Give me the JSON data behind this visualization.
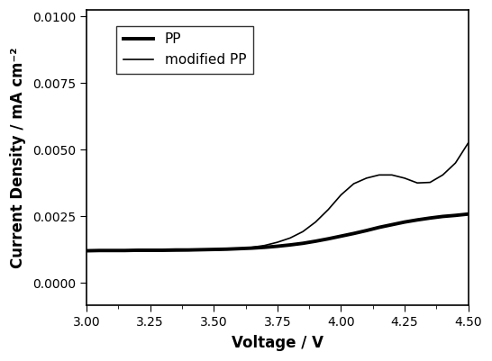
{
  "title": "",
  "xlabel": "Voltage / V",
  "ylabel": "Current Density / mA cm⁻²",
  "xlim": [
    3.0,
    4.5
  ],
  "ylim": [
    -0.00085,
    0.01025
  ],
  "yticks": [
    0.0,
    0.0025,
    0.005,
    0.0075,
    0.01
  ],
  "xticks": [
    3.0,
    3.25,
    3.5,
    3.75,
    4.0,
    4.25,
    4.5
  ],
  "legend_labels": [
    "PP",
    "modified PP"
  ],
  "line_pp_lw": 2.8,
  "line_mod_lw": 1.2,
  "line_color": "#000000",
  "background_color": "#ffffff",
  "pp_x": [
    3.0,
    3.05,
    3.1,
    3.15,
    3.2,
    3.25,
    3.3,
    3.35,
    3.4,
    3.45,
    3.5,
    3.55,
    3.6,
    3.65,
    3.7,
    3.75,
    3.8,
    3.85,
    3.9,
    3.95,
    4.0,
    4.05,
    4.1,
    4.15,
    4.2,
    4.25,
    4.3,
    4.35,
    4.4,
    4.45,
    4.5
  ],
  "pp_y": [
    0.0012,
    0.00121,
    0.00121,
    0.00121,
    0.00122,
    0.00122,
    0.00122,
    0.00123,
    0.00123,
    0.00124,
    0.00125,
    0.00126,
    0.00128,
    0.0013,
    0.00133,
    0.00137,
    0.00142,
    0.00148,
    0.00156,
    0.00165,
    0.00175,
    0.00185,
    0.00196,
    0.00208,
    0.00218,
    0.00228,
    0.00236,
    0.00243,
    0.00249,
    0.00253,
    0.00258
  ],
  "mod_x": [
    3.0,
    3.05,
    3.1,
    3.15,
    3.2,
    3.25,
    3.3,
    3.35,
    3.4,
    3.45,
    3.5,
    3.55,
    3.6,
    3.65,
    3.7,
    3.75,
    3.8,
    3.85,
    3.9,
    3.95,
    4.0,
    4.05,
    4.1,
    4.15,
    4.2,
    4.25,
    4.3,
    4.35,
    4.4,
    4.45,
    4.5
  ],
  "mod_y": [
    0.0012,
    0.0012,
    0.0012,
    0.0012,
    0.0012,
    0.0012,
    0.0012,
    0.0012,
    0.00121,
    0.00122,
    0.00123,
    0.00125,
    0.00128,
    0.00133,
    0.0014,
    0.00152,
    0.00168,
    0.00192,
    0.00228,
    0.00275,
    0.0033,
    0.00372,
    0.00393,
    0.00405,
    0.00405,
    0.00393,
    0.00375,
    0.00377,
    0.00405,
    0.0045,
    0.00525
  ]
}
